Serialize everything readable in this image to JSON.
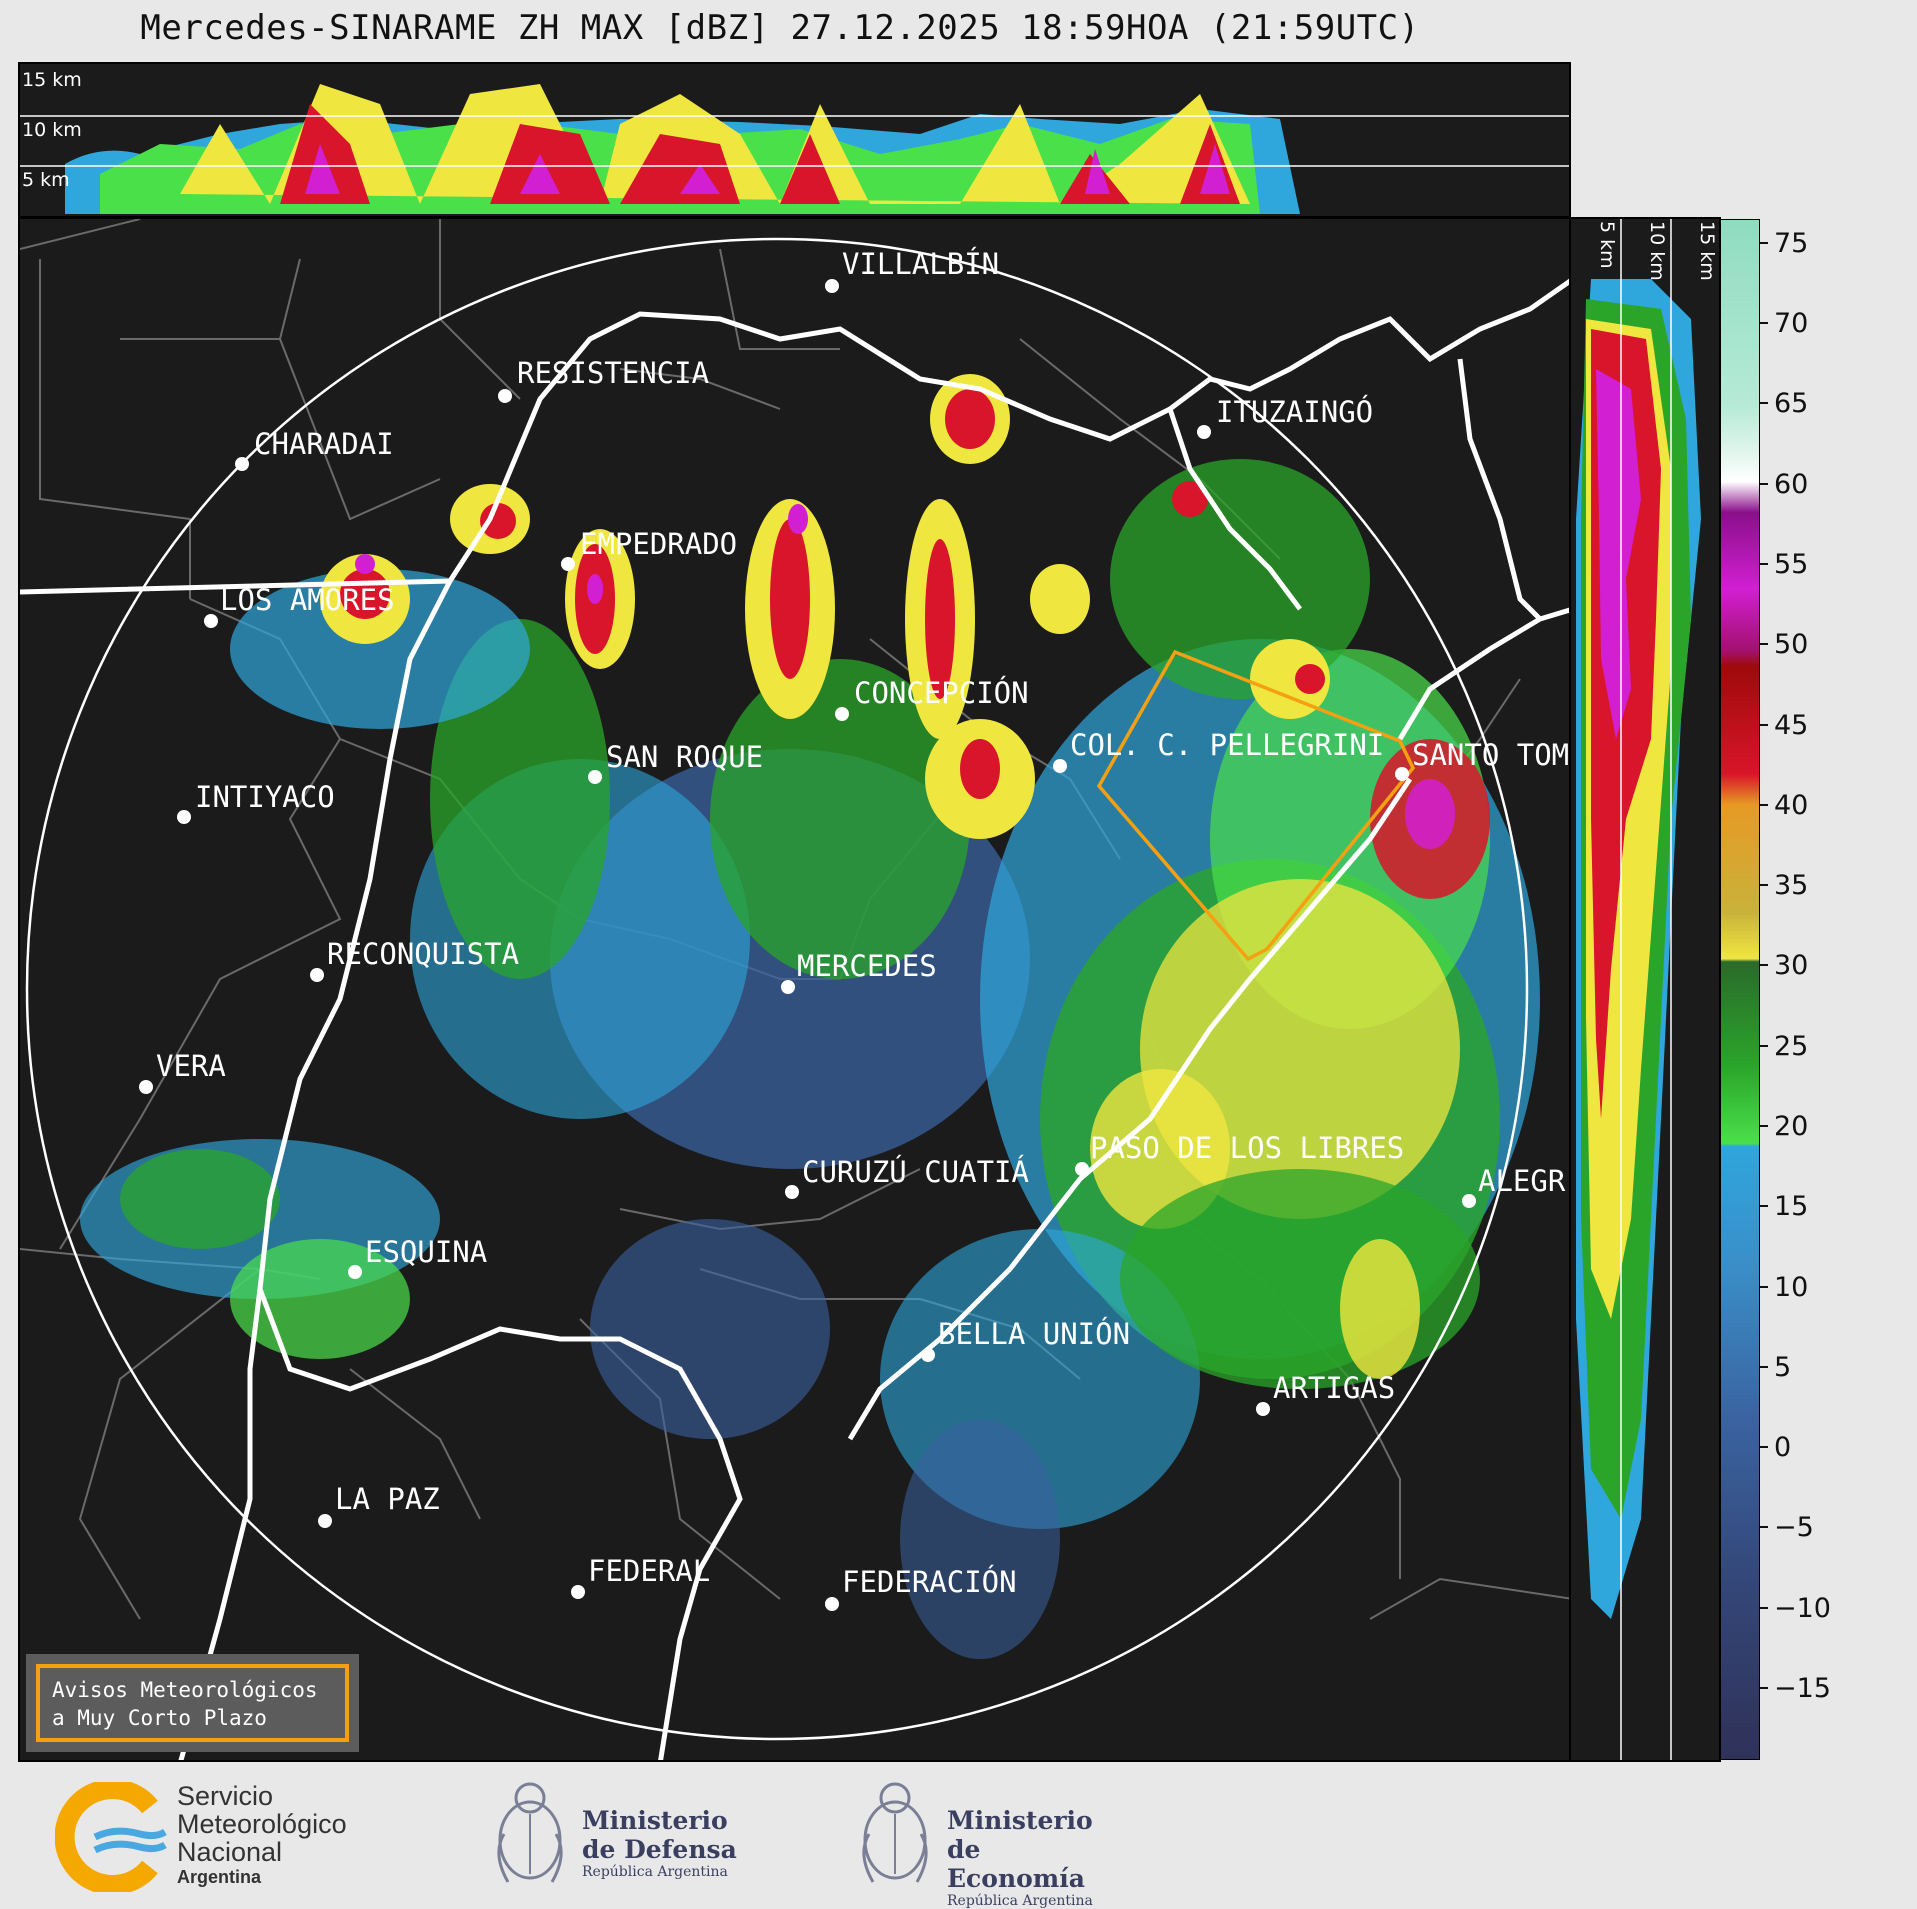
{
  "header": {
    "title": "Mercedes-SINARAME ZH MAX [dBZ] 27.12.2025 18:59HOA (21:59UTC)"
  },
  "top_profile": {
    "height_labels": [
      "15 km",
      "10 km",
      "5 km"
    ]
  },
  "side_profile": {
    "height_labels": [
      "5 km",
      "10 km",
      "15 km"
    ]
  },
  "colorbar": {
    "ticks": [
      "75",
      "70",
      "65",
      "60",
      "55",
      "50",
      "45",
      "40",
      "35",
      "30",
      "25",
      "20",
      "15",
      "10",
      "5",
      "0",
      "−5",
      "−10",
      "−15"
    ],
    "colors": {
      "very_low": "#2f3158",
      "low_blue": "#3a63a0",
      "light_blue": "#2fa6dc",
      "green": "#2aa52a",
      "bright_green": "#4ae04a",
      "yellow": "#f0e640",
      "orange": "#e69a25",
      "red": "#d8152a",
      "dark_red": "#9e0a0a",
      "magenta": "#d21fd2",
      "purple": "#8a0f8a",
      "white": "#ffffff",
      "mint": "#8fdcc0"
    }
  },
  "map": {
    "cities": [
      {
        "name": "VILLALBÍN"
      },
      {
        "name": "RESISTENCIA"
      },
      {
        "name": "CHARADAI"
      },
      {
        "name": "ITUZAINGÓ"
      },
      {
        "name": "EMPEDRADO"
      },
      {
        "name": "LOS AMORES"
      },
      {
        "name": "CONCEPCIÓN"
      },
      {
        "name": "SAN ROQUE"
      },
      {
        "name": "COL. C. PELLEGRINI"
      },
      {
        "name": "SANTO TOM"
      },
      {
        "name": "INTIYACO"
      },
      {
        "name": "MERCEDES"
      },
      {
        "name": "RECONQUISTA"
      },
      {
        "name": "VERA"
      },
      {
        "name": "PASO DE LOS LIBRES"
      },
      {
        "name": "CURUZÚ CUATIÁ"
      },
      {
        "name": "ALEGR"
      },
      {
        "name": "ESQUINA"
      },
      {
        "name": "BELLA UNIÓN"
      },
      {
        "name": "ARTIGAS"
      },
      {
        "name": "LA PAZ"
      },
      {
        "name": "FEDERAL"
      },
      {
        "name": "FEDERACIÓN"
      }
    ]
  },
  "notice": {
    "line1": "Avisos Meteorológicos",
    "line2": "a Muy Corto Plazo"
  },
  "logos": {
    "smn": {
      "line1": "Servicio",
      "line2": "Meteorológico",
      "line3": "Nacional",
      "line4": "Argentina"
    },
    "defensa": {
      "line1": "Ministerio",
      "line2": "de Defensa",
      "line3": "República Argentina"
    },
    "economia": {
      "line1": "Ministerio",
      "line2": "de Economía",
      "line3": "República Argentina"
    }
  }
}
